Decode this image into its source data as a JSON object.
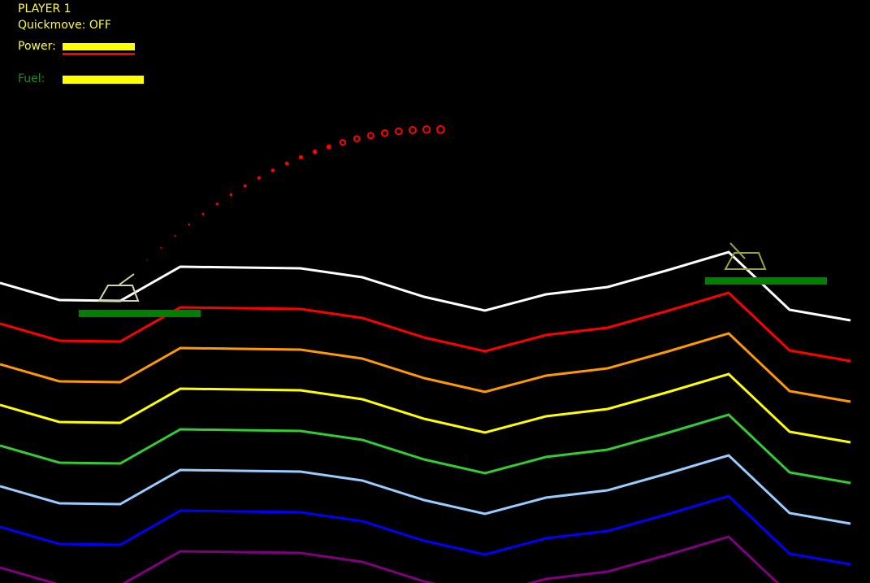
{
  "hud": {
    "player": "PLAYER 1",
    "quickmove": "Quickmove: OFF",
    "power_label": "Power:",
    "fuel_label": "Fuel:",
    "power_level": 0.89,
    "fuel_level": 1.0,
    "hud_text_color": "#ffff33",
    "fuel_label_color": "#228b22",
    "bar_color": "#ffff00",
    "power_marker_color": "#ff0000"
  },
  "tanks": [
    {
      "name": "player-1-tank",
      "color": "#d6d6a8",
      "health_color": "#007f00",
      "health": 1.0,
      "turret_direction": "up-right"
    },
    {
      "name": "player-2-tank",
      "color": "#9aa13c",
      "health_color": "#007f00",
      "health": 1.0,
      "turret_direction": "up-left"
    }
  ],
  "projectile_trail_color": "#ff0000",
  "terrain_layer_colors": [
    "#ffffff",
    "#ff0000",
    "#ff9900",
    "#ffff00",
    "#33cc33",
    "#99ccff",
    "#0000ff",
    "#800080"
  ]
}
